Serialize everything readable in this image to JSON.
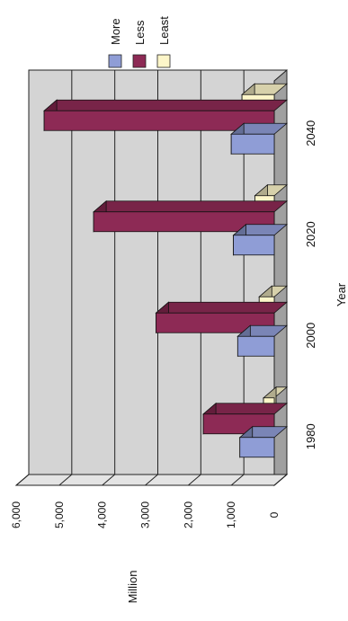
{
  "chart_data": {
    "type": "bar",
    "orientation": "rotated-3d",
    "title": "",
    "xlabel": "Year",
    "ylabel": "Million",
    "categories": [
      "1980",
      "2000",
      "2020",
      "2040"
    ],
    "series": [
      {
        "name": "More",
        "values": [
          800,
          850,
          950,
          1000
        ]
      },
      {
        "name": "Less",
        "values": [
          1650,
          2750,
          4200,
          5350
        ]
      },
      {
        "name": "Least",
        "values": [
          250,
          350,
          450,
          750
        ]
      }
    ],
    "y_ticks": [
      "0",
      "1,000",
      "2,000",
      "3,000",
      "4,000",
      "5,000",
      "6,000"
    ],
    "ylim": [
      0,
      6000
    ],
    "grid": true,
    "legend": "top",
    "colors": {
      "More": "#8f9dd6",
      "Less": "#8d2a55",
      "Least": "#fdf6c9",
      "plot_wall": "#d4d4d4",
      "side_wall": "#a0a0a0"
    }
  }
}
